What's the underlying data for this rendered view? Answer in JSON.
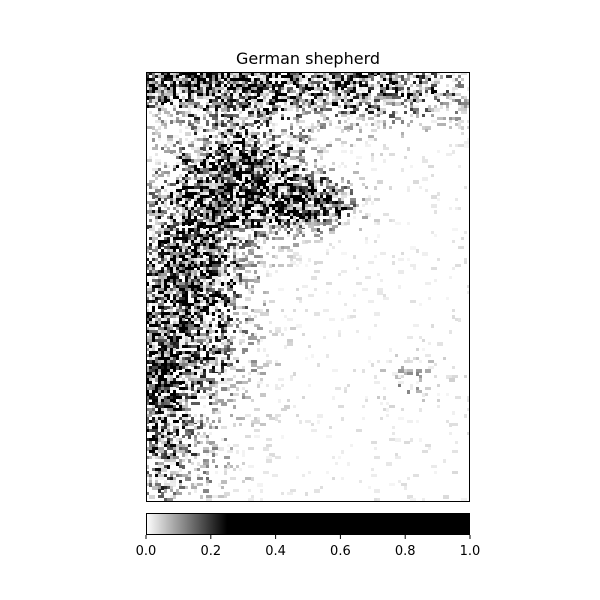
{
  "chart_data": {
    "type": "heatmap",
    "title": "German shepherd",
    "xlabel": "",
    "ylabel": "",
    "colormap": "gray_r",
    "colorbar": {
      "orientation": "horizontal",
      "range": [
        0.0,
        1.0
      ],
      "ticks": [
        0.0,
        0.2,
        0.4,
        0.6,
        0.8,
        1.0
      ],
      "tick_labels": [
        "0.0",
        "0.2",
        "0.4",
        "0.6",
        "0.8",
        "1.0"
      ],
      "saturation_point": 0.25
    },
    "axes_ticks_visible": false,
    "colors": {
      "low": "#ffffff",
      "high": "#000000",
      "frame": "#000000"
    }
  }
}
